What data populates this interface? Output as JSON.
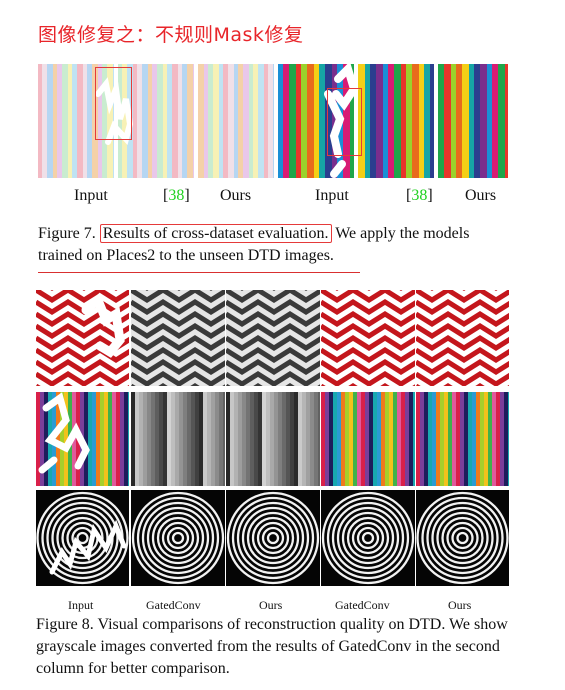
{
  "title": "图像修复之：不规则Mask修复",
  "figure7": {
    "labels": [
      "Input",
      "[38]",
      "Ours",
      "Input",
      "[38]",
      "Ours"
    ],
    "cite_text": "38",
    "caption_prefix": "Figure 7.",
    "caption_highlight": "Results of cross-dataset evaluation.",
    "caption_rest": "We apply the models trained on Places2 to the unseen DTD images."
  },
  "figure8": {
    "labels": [
      "Input",
      "GatedConv",
      "Ours",
      "GatedConv",
      "Ours"
    ],
    "caption": "Figure 8. Visual comparisons of reconstruction quality on DTD. We show grayscale images converted from the results of GatedConv in the second column for better comparison."
  },
  "colors": {
    "title_red": "#e8252a",
    "cite_green": "#1fd11f",
    "zigzag_red": "#c4161c"
  }
}
